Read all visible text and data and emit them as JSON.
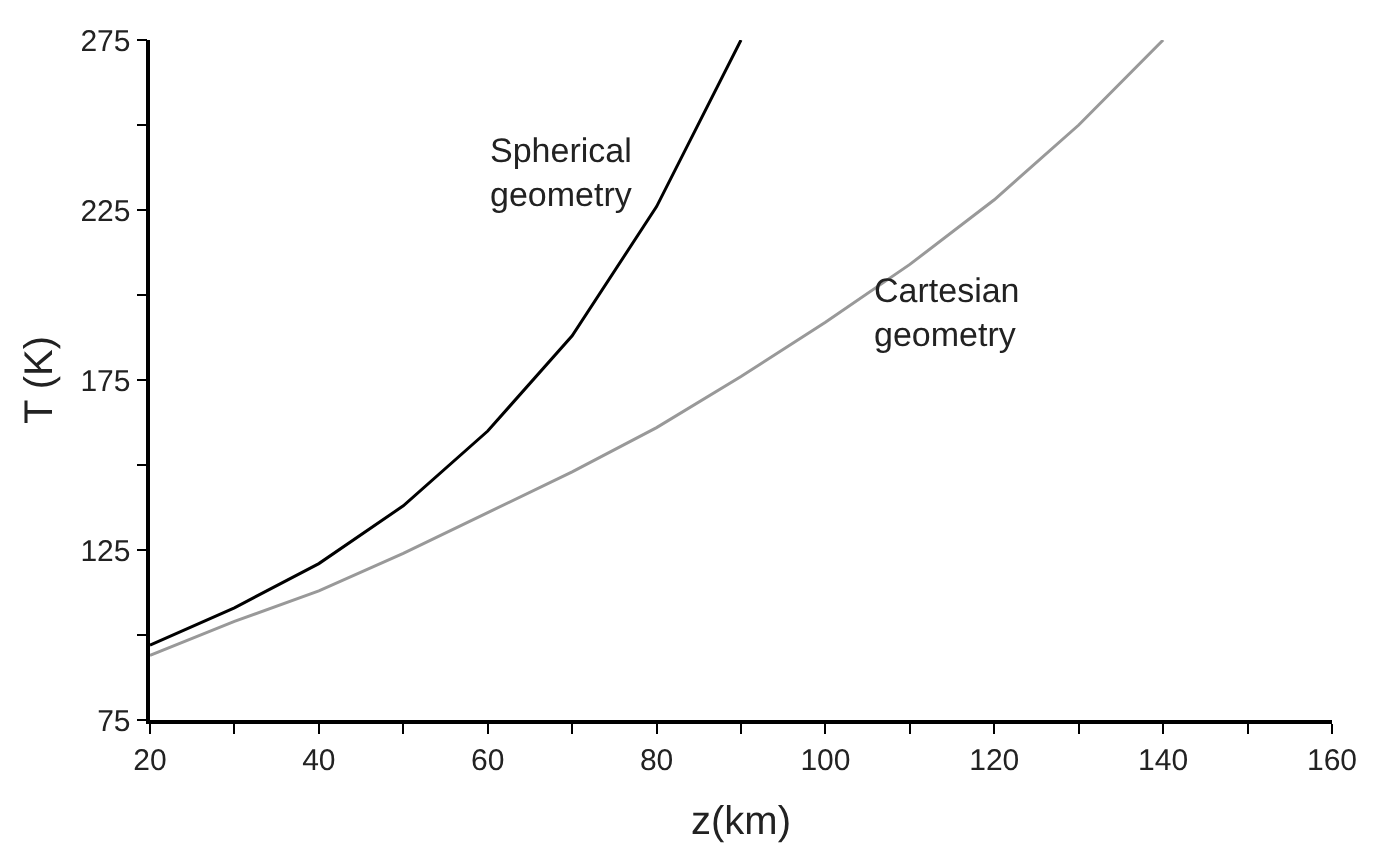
{
  "chart_data": {
    "type": "line",
    "xlabel": "z(km)",
    "ylabel": "T (K)",
    "series": [
      {
        "color": "#000000",
        "x": [
          20,
          30,
          40,
          50,
          60,
          70,
          80,
          90
        ],
        "values": [
          97,
          108,
          121,
          138,
          160,
          188,
          226,
          275
        ]
      },
      {
        "color": "#999999",
        "x": [
          20,
          30,
          40,
          50,
          60,
          70,
          80,
          90,
          100,
          110,
          120,
          130,
          140
        ],
        "values": [
          94,
          104,
          113,
          124,
          136,
          148,
          161,
          176,
          192,
          209,
          228,
          250,
          275
        ]
      }
    ],
    "annotations": [
      "Spherical\ngeometry",
      "Cartesian\ngeometry"
    ],
    "xlim": [
      20,
      160
    ],
    "ylim": [
      75,
      275
    ],
    "xticks": [
      20,
      {
        "value": 30,
        "label": null
      },
      40,
      {
        "value": 50,
        "label": null
      },
      60,
      {
        "value": 70,
        "label": null
      },
      80,
      {
        "value": 90,
        "label": null
      },
      100,
      {
        "value": 110,
        "label": null
      },
      120,
      {
        "value": 130,
        "label": null
      },
      140,
      {
        "value": 150,
        "label": null
      },
      160
    ],
    "yticks": [
      75,
      {
        "value": 100,
        "label": null
      },
      125,
      {
        "value": 150,
        "label": null
      },
      175,
      {
        "value": 200,
        "label": null
      },
      225,
      {
        "value": 250,
        "label": null
      },
      275
    ],
    "marker": "none",
    "line_style": "solid"
  }
}
